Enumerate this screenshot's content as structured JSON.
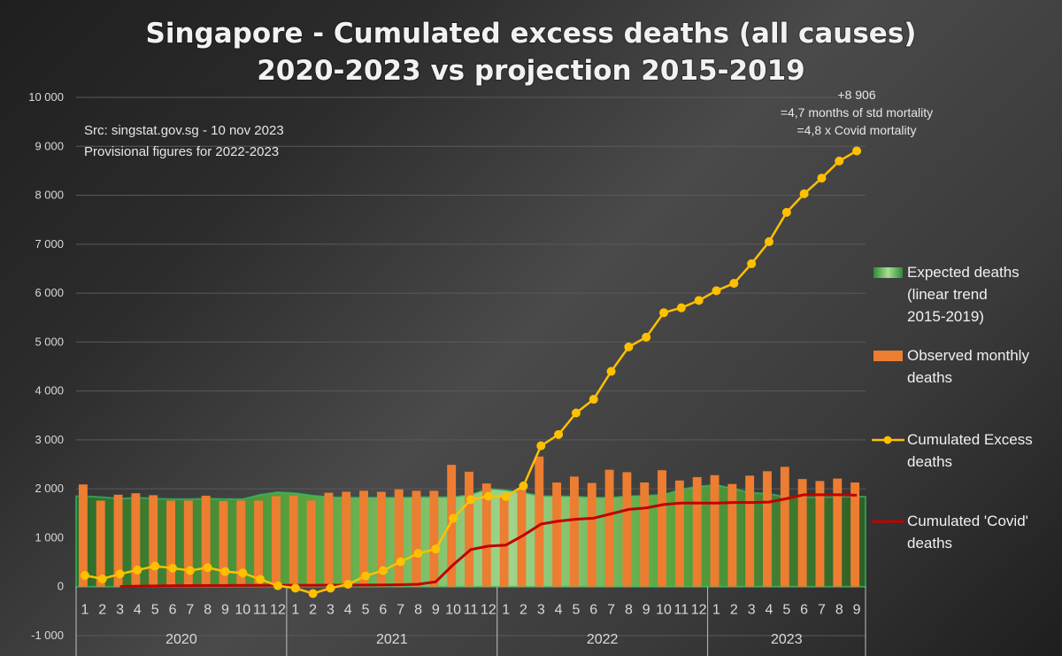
{
  "chart_data": {
    "type": "bar",
    "title": "Singapore - Cumulated excess deaths (all causes)",
    "subtitle": "2020-2023 vs projection 2015-2019",
    "notes": [
      "Src: singstat.gov.sg - 10 nov 2023",
      "Provisional figures for 2022-2023"
    ],
    "annotation": [
      "+8 906",
      "=4,7 months of std mortality",
      "=4,8 x Covid mortality"
    ],
    "xlabel": "",
    "ylabel": "",
    "ylim": [
      -1000,
      10000
    ],
    "yticks": [
      -1000,
      0,
      1000,
      2000,
      3000,
      4000,
      5000,
      6000,
      7000,
      8000,
      9000,
      10000
    ],
    "ytick_labels": [
      "-1 000",
      "0",
      "1 000",
      "2 000",
      "3 000",
      "4 000",
      "5 000",
      "6 000",
      "7 000",
      "8 000",
      "9 000",
      "10 000"
    ],
    "grid": true,
    "legend_position": "right",
    "years": [
      {
        "label": "2020",
        "months": 12
      },
      {
        "label": "2021",
        "months": 12
      },
      {
        "label": "2022",
        "months": 12
      },
      {
        "label": "2023",
        "months": 9
      }
    ],
    "categories": [
      "1",
      "2",
      "3",
      "4",
      "5",
      "6",
      "7",
      "8",
      "9",
      "10",
      "11",
      "12",
      "1",
      "2",
      "3",
      "4",
      "5",
      "6",
      "7",
      "8",
      "9",
      "10",
      "11",
      "12",
      "1",
      "2",
      "3",
      "4",
      "5",
      "6",
      "7",
      "8",
      "9",
      "10",
      "11",
      "12",
      "1",
      "2",
      "3",
      "4",
      "5",
      "6",
      "7",
      "8",
      "9"
    ],
    "series": [
      {
        "name": "Expected deaths (linear trend 2015-2019)",
        "type": "area",
        "color": "#4caf50",
        "values": [
          1850,
          1830,
          1800,
          1820,
          1800,
          1790,
          1790,
          1800,
          1790,
          1790,
          1880,
          1930,
          1910,
          1860,
          1830,
          1820,
          1820,
          1820,
          1820,
          1830,
          1830,
          1830,
          1880,
          2000,
          1970,
          1920,
          1850,
          1850,
          1840,
          1820,
          1820,
          1850,
          1860,
          1880,
          1990,
          2050,
          2080,
          2000,
          1920,
          1900,
          1830,
          1830,
          1830,
          1840,
          1840
        ]
      },
      {
        "name": "Observed monthly deaths",
        "type": "bar",
        "color": "#ed7d31",
        "values": [
          2090,
          1760,
          1880,
          1910,
          1870,
          1760,
          1760,
          1860,
          1750,
          1760,
          1760,
          1850,
          1860,
          1760,
          1920,
          1940,
          1960,
          1940,
          1990,
          1960,
          1960,
          2490,
          2350,
          2110,
          1850,
          2020,
          2660,
          2130,
          2250,
          2120,
          2390,
          2340,
          2130,
          2380,
          2170,
          2240,
          2280,
          2100,
          2270,
          2360,
          2450,
          2200,
          2160,
          2210,
          2130
        ]
      },
      {
        "name": "Cumulated Excess deaths",
        "type": "line",
        "color": "#ffc000",
        "values": [
          230,
          160,
          260,
          340,
          420,
          380,
          330,
          390,
          310,
          280,
          150,
          20,
          -30,
          -140,
          -30,
          50,
          220,
          330,
          510,
          680,
          770,
          1400,
          1780,
          1850,
          1840,
          2060,
          2880,
          3110,
          3550,
          3830,
          4400,
          4900,
          5100,
          5600,
          5700,
          5850,
          6050,
          6200,
          6600,
          7050,
          7650,
          8030,
          8350,
          8700,
          8906
        ]
      },
      {
        "name": "Cumulated 'Covid' deaths",
        "type": "line",
        "color": "#c00000",
        "values": [
          null,
          null,
          5,
          10,
          15,
          20,
          22,
          24,
          25,
          26,
          27,
          28,
          30,
          30,
          31,
          32,
          34,
          36,
          40,
          50,
          100,
          450,
          760,
          830,
          850,
          1050,
          1280,
          1340,
          1380,
          1400,
          1490,
          1580,
          1610,
          1680,
          1710,
          1710,
          1710,
          1720,
          1720,
          1730,
          1800,
          1880,
          1880,
          1880,
          1870
        ]
      }
    ],
    "legend": [
      {
        "label_lines": [
          "Expected deaths",
          "(linear trend",
          "2015-2019)"
        ],
        "key": "area"
      },
      {
        "label_lines": [
          "Observed monthly",
          "deaths"
        ],
        "key": "bar"
      },
      {
        "label_lines": [
          "Cumulated Excess",
          "deaths"
        ],
        "key": "line-marker"
      },
      {
        "label_lines": [
          "Cumulated 'Covid'",
          "deaths"
        ],
        "key": "line"
      }
    ]
  }
}
